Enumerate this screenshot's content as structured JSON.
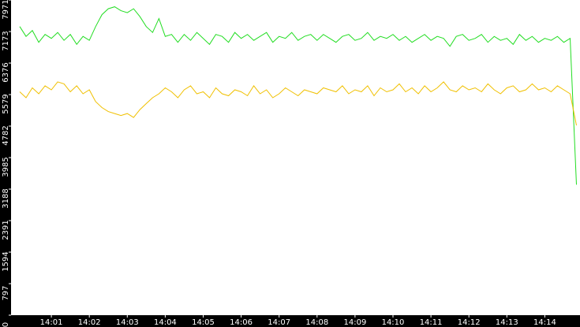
{
  "chart_data": {
    "type": "line",
    "categories": [
      null,
      null,
      null,
      null,
      null,
      "14:01",
      null,
      null,
      null,
      null,
      null,
      "14:02",
      null,
      null,
      null,
      null,
      null,
      "14:03",
      null,
      null,
      null,
      null,
      null,
      "14:04",
      null,
      null,
      null,
      null,
      null,
      "14:05",
      null,
      null,
      null,
      null,
      null,
      "14:06",
      null,
      null,
      null,
      null,
      null,
      "14:07",
      null,
      null,
      null,
      null,
      null,
      "14:08",
      null,
      null,
      null,
      null,
      null,
      "14:09",
      null,
      null,
      null,
      null,
      null,
      "14:10",
      null,
      null,
      null,
      null,
      null,
      "14:11",
      null,
      null,
      null,
      null,
      null,
      "14:12",
      null,
      null,
      null,
      null,
      null,
      "14:13",
      null,
      null,
      null,
      null,
      null,
      "14:14",
      null,
      null,
      null,
      null,
      null
    ],
    "series": [
      {
        "color": "#22dd22",
        "values": [
          7300,
          7050,
          7200,
          6900,
          7100,
          7000,
          7150,
          6950,
          7100,
          6850,
          7050,
          6950,
          7300,
          7600,
          7750,
          7800,
          7700,
          7650,
          7750,
          7550,
          7300,
          7150,
          7500,
          7050,
          7100,
          6900,
          7100,
          6950,
          7150,
          7000,
          6850,
          7100,
          7050,
          6900,
          7150,
          7000,
          7100,
          6950,
          7050,
          7150,
          6900,
          7050,
          7000,
          7150,
          6950,
          7050,
          7100,
          6950,
          7100,
          7000,
          6900,
          7050,
          7100,
          6950,
          7000,
          7150,
          6950,
          7050,
          7000,
          7100,
          6950,
          7050,
          6900,
          7000,
          7100,
          6950,
          7050,
          7000,
          6800,
          7050,
          7100,
          6950,
          7000,
          7100,
          6900,
          7050,
          6950,
          7000,
          6850,
          7100,
          6950,
          7050,
          6900,
          7000,
          6950,
          7050,
          6900,
          7000,
          3300
        ]
      },
      {
        "color": "#f0c000",
        "values": [
          5650,
          5500,
          5750,
          5600,
          5800,
          5700,
          5900,
          5850,
          5650,
          5800,
          5600,
          5700,
          5400,
          5250,
          5150,
          5100,
          5050,
          5100,
          5000,
          5200,
          5350,
          5500,
          5600,
          5750,
          5650,
          5500,
          5700,
          5800,
          5600,
          5650,
          5500,
          5750,
          5600,
          5550,
          5700,
          5650,
          5550,
          5800,
          5600,
          5700,
          5500,
          5600,
          5750,
          5650,
          5550,
          5700,
          5650,
          5600,
          5750,
          5700,
          5650,
          5800,
          5600,
          5700,
          5650,
          5800,
          5550,
          5750,
          5650,
          5700,
          5850,
          5650,
          5750,
          5600,
          5800,
          5650,
          5750,
          5900,
          5700,
          5650,
          5800,
          5700,
          5750,
          5650,
          5850,
          5700,
          5600,
          5750,
          5800,
          5650,
          5700,
          5850,
          5700,
          5750,
          5650,
          5800,
          5700,
          5600,
          4800
        ]
      }
    ],
    "ylim": [
      0,
      7971
    ],
    "yticks": [
      0,
      797,
      1594,
      2391,
      3188,
      3985,
      4782,
      5579,
      6376,
      7173,
      7971
    ]
  }
}
